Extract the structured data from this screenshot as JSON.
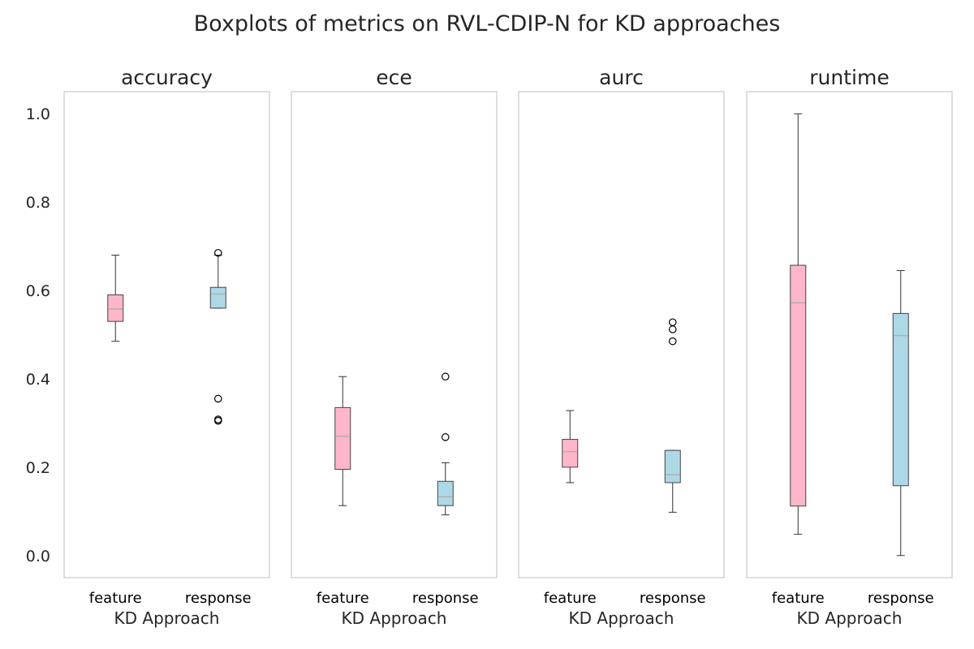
{
  "chart_data": {
    "type": "boxplot",
    "title": "Boxplots of metrics on RVL-CDIP-N for KD approaches",
    "ylim": [
      -0.05,
      1.05
    ],
    "yticks": [
      "0.0",
      "0.2",
      "0.4",
      "0.6",
      "0.8",
      "1.0"
    ],
    "ytick_values": [
      0.0,
      0.2,
      0.4,
      0.6,
      0.8,
      1.0
    ],
    "grid": false,
    "sharey": true,
    "colors": {
      "feature": "#ffb6c8",
      "response": "#add8e6"
    },
    "panels": [
      {
        "title": "accuracy",
        "xlabel": "KD Approach",
        "categories": [
          "feature",
          "response"
        ],
        "boxes": [
          {
            "name": "feature",
            "whislo": 0.485,
            "q1": 0.53,
            "med": 0.558,
            "q3": 0.59,
            "whishi": 0.68,
            "fliers": []
          },
          {
            "name": "response",
            "whislo": 0.56,
            "q1": 0.56,
            "med": 0.592,
            "q3": 0.607,
            "whishi": 0.68,
            "fliers": [
              0.685,
              0.355,
              0.308,
              0.305
            ]
          }
        ]
      },
      {
        "title": "ece",
        "xlabel": "KD Approach",
        "categories": [
          "feature",
          "response"
        ],
        "boxes": [
          {
            "name": "feature",
            "whislo": 0.113,
            "q1": 0.195,
            "med": 0.27,
            "q3": 0.335,
            "whishi": 0.405,
            "fliers": []
          },
          {
            "name": "response",
            "whislo": 0.092,
            "q1": 0.113,
            "med": 0.133,
            "q3": 0.168,
            "whishi": 0.21,
            "fliers": [
              0.405,
              0.268
            ]
          }
        ]
      },
      {
        "title": "aurc",
        "xlabel": "KD Approach",
        "categories": [
          "feature",
          "response"
        ],
        "boxes": [
          {
            "name": "feature",
            "whislo": 0.165,
            "q1": 0.2,
            "med": 0.235,
            "q3": 0.263,
            "whishi": 0.328,
            "fliers": []
          },
          {
            "name": "response",
            "whislo": 0.098,
            "q1": 0.165,
            "med": 0.183,
            "q3": 0.238,
            "whishi": 0.238,
            "fliers": [
              0.528,
              0.512,
              0.485
            ]
          }
        ]
      },
      {
        "title": "runtime",
        "xlabel": "KD Approach",
        "categories": [
          "feature",
          "response"
        ],
        "boxes": [
          {
            "name": "feature",
            "whislo": 0.048,
            "q1": 0.112,
            "med": 0.572,
            "q3": 0.657,
            "whishi": 1.0,
            "fliers": []
          },
          {
            "name": "response",
            "whislo": 0.0,
            "q1": 0.158,
            "med": 0.498,
            "q3": 0.548,
            "whishi": 0.645,
            "fliers": []
          }
        ]
      }
    ]
  }
}
